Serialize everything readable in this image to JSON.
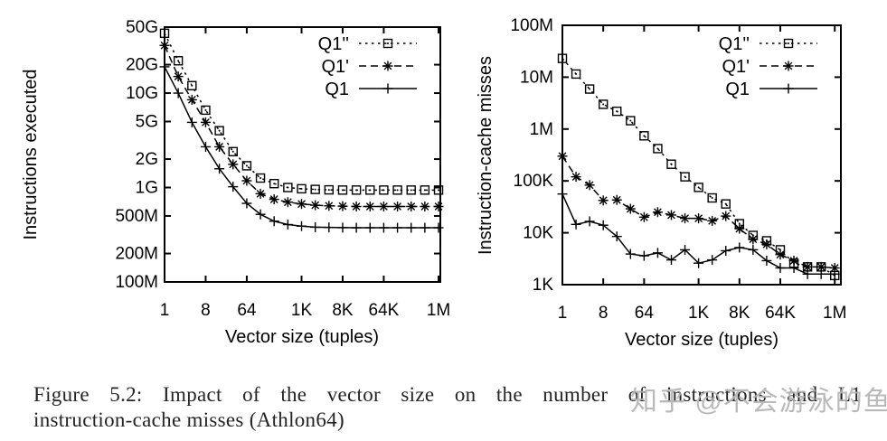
{
  "page": {
    "background": "#ffffff",
    "ink_color": "#000000"
  },
  "caption": {
    "line1": "Figure 5.2: Impact of the vector size on the number of instructions and L1",
    "line2": "instruction-cache misses (Athlon64)"
  },
  "watermark": {
    "text": "知乎 @不会游泳的鱼",
    "color": "#b2b2b2"
  },
  "chart_data": [
    {
      "type": "line",
      "name": "instructions-executed",
      "title": "",
      "xlabel": "Vector size (tuples)",
      "ylabel": "Instructions executed",
      "x_scale": "log2",
      "y_scale": "log10",
      "xlim": [
        1,
        1048576
      ],
      "ylim": [
        100000000.0,
        50000000000.0
      ],
      "grid": false,
      "legend_position": "top-right",
      "x": [
        1,
        2,
        4,
        8,
        16,
        32,
        64,
        128,
        256,
        512,
        1024,
        2048,
        4096,
        8192,
        16384,
        32768,
        65536,
        131072,
        262144,
        524288,
        1048576
      ],
      "xticks": [
        {
          "label": "1",
          "value": 1
        },
        {
          "label": "8",
          "value": 8
        },
        {
          "label": "64",
          "value": 64
        },
        {
          "label": "1K",
          "value": 1024
        },
        {
          "label": "8K",
          "value": 8192
        },
        {
          "label": "64K",
          "value": 65536
        },
        {
          "label": "1M",
          "value": 1048576
        }
      ],
      "yticks": [
        {
          "label": "50G",
          "value": 50000000000.0
        },
        {
          "label": "20G",
          "value": 20000000000.0
        },
        {
          "label": "10G",
          "value": 10000000000.0
        },
        {
          "label": "5G",
          "value": 5000000000.0
        },
        {
          "label": "2G",
          "value": 2000000000.0
        },
        {
          "label": "1G",
          "value": 1000000000.0
        },
        {
          "label": "500M",
          "value": 500000000.0
        },
        {
          "label": "200M",
          "value": 200000000.0
        },
        {
          "label": "100M",
          "value": 100000000.0
        }
      ],
      "series": [
        {
          "name": "Q1''",
          "marker": "square",
          "line": "dotted",
          "color": "#000000",
          "values": [
            43000000000.0,
            22000000000.0,
            12000000000.0,
            6600000000.0,
            4000000000.0,
            2400000000.0,
            1700000000.0,
            1260000000.0,
            1100000000.0,
            1000000000.0,
            970000000.0,
            955000000.0,
            945000000.0,
            940000000.0,
            940000000.0,
            940000000.0,
            940000000.0,
            940000000.0,
            940000000.0,
            940000000.0,
            940000000.0
          ]
        },
        {
          "name": "Q1'",
          "marker": "asterisk",
          "line": "dashed",
          "color": "#000000",
          "values": [
            32000000000.0,
            15000000000.0,
            8500000000.0,
            4900000000.0,
            2700000000.0,
            1760000000.0,
            1180000000.0,
            860000000.0,
            750000000.0,
            700000000.0,
            670000000.0,
            650000000.0,
            640000000.0,
            635000000.0,
            630000000.0,
            630000000.0,
            630000000.0,
            630000000.0,
            630000000.0,
            630000000.0,
            630000000.0
          ]
        },
        {
          "name": "Q1",
          "marker": "plus",
          "line": "solid",
          "color": "#000000",
          "values": [
            19000000000.0,
            10000000000.0,
            4900000000.0,
            2700000000.0,
            1580000000.0,
            1020000000.0,
            680000000.0,
            520000000.0,
            440000000.0,
            405000000.0,
            390000000.0,
            380000000.0,
            378000000.0,
            376000000.0,
            375000000.0,
            375000000.0,
            375000000.0,
            375000000.0,
            375000000.0,
            375000000.0,
            375000000.0
          ]
        }
      ]
    },
    {
      "type": "line",
      "name": "instruction-cache-misses",
      "title": "",
      "xlabel": "Vector size (tuples)",
      "ylabel": "Instruction-cache misses",
      "x_scale": "log2",
      "y_scale": "log10",
      "xlim": [
        1,
        1048576
      ],
      "ylim": [
        1000.0,
        100000000.0
      ],
      "grid": false,
      "legend_position": "top-right",
      "x": [
        1,
        2,
        4,
        8,
        16,
        32,
        64,
        128,
        256,
        512,
        1024,
        2048,
        4096,
        8192,
        16384,
        32768,
        65536,
        131072,
        262144,
        524288,
        1048576
      ],
      "xticks": [
        {
          "label": "1",
          "value": 1
        },
        {
          "label": "8",
          "value": 8
        },
        {
          "label": "64",
          "value": 64
        },
        {
          "label": "1K",
          "value": 1024
        },
        {
          "label": "8K",
          "value": 8192
        },
        {
          "label": "64K",
          "value": 65536
        },
        {
          "label": "1M",
          "value": 1048576
        }
      ],
      "yticks": [
        {
          "label": "100M",
          "value": 100000000.0
        },
        {
          "label": "10M",
          "value": 10000000.0
        },
        {
          "label": "1M",
          "value": 1000000.0
        },
        {
          "label": "100K",
          "value": 100000.0
        },
        {
          "label": "10K",
          "value": 10000.0
        },
        {
          "label": "1K",
          "value": 1000.0
        }
      ],
      "series": [
        {
          "name": "Q1''",
          "marker": "square",
          "line": "dotted",
          "color": "#000000",
          "values": [
            23000000.0,
            11500000.0,
            5900000.0,
            3000000.0,
            2200000.0,
            1450000.0,
            740000.0,
            420000.0,
            210000.0,
            120000.0,
            75000.0,
            47000.0,
            36000.0,
            15000.0,
            8900.0,
            7000.0,
            4700.0,
            2600.0,
            2200.0,
            2200.0,
            1500.0
          ]
        },
        {
          "name": "Q1'",
          "marker": "asterisk",
          "line": "dashed",
          "color": "#000000",
          "values": [
            300000.0,
            120000.0,
            83000.0,
            42000.0,
            43000.0,
            29000.0,
            20000.0,
            25000.0,
            22000.0,
            19000.0,
            19000.0,
            17000.0,
            21000.0,
            12000.0,
            7500.0,
            6000.0,
            3800.0,
            2900.0,
            2200.0,
            2200.0,
            2100.0
          ]
        },
        {
          "name": "Q1",
          "marker": "plus",
          "line": "solid",
          "color": "#000000",
          "values": [
            56000.0,
            14500.0,
            16600.0,
            14000.0,
            8500.0,
            3900.0,
            3600.0,
            4100.0,
            3000.0,
            4700.0,
            2600.0,
            3000.0,
            4500.0,
            5200.0,
            4700.0,
            2900.0,
            2100.0,
            2100.0,
            1600.0,
            1600.0,
            1600.0
          ]
        }
      ]
    }
  ]
}
